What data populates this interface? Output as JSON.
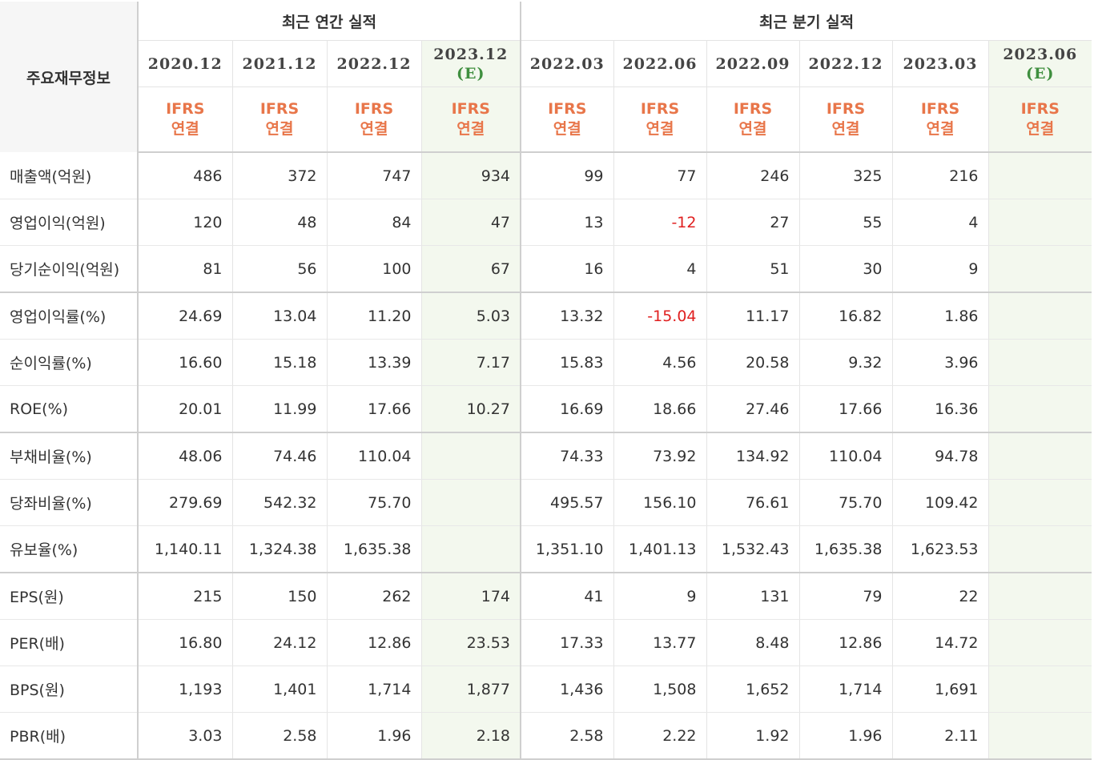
{
  "header": {
    "corner_label": "주요재무정보",
    "annual_group": "최근 연간 실적",
    "quarterly_group": "최근 분기 실적",
    "basis_line1": "IFRS",
    "basis_line2": "연결",
    "est_mark": "(E)",
    "annual_periods": [
      "2020.12",
      "2021.12",
      "2022.12",
      "2023.12"
    ],
    "quarterly_periods": [
      "2022.03",
      "2022.06",
      "2022.09",
      "2022.12",
      "2023.03",
      "2023.06"
    ]
  },
  "rows": [
    {
      "label": "매출액(억원)",
      "annual": [
        "486",
        "372",
        "747",
        "934"
      ],
      "quarterly": [
        "99",
        "77",
        "246",
        "325",
        "216",
        ""
      ]
    },
    {
      "label": "영업이익(억원)",
      "annual": [
        "120",
        "48",
        "84",
        "47"
      ],
      "quarterly": [
        "13",
        "-12",
        "27",
        "55",
        "4",
        ""
      ]
    },
    {
      "label": "당기순이익(억원)",
      "annual": [
        "81",
        "56",
        "100",
        "67"
      ],
      "quarterly": [
        "16",
        "4",
        "51",
        "30",
        "9",
        ""
      ]
    },
    {
      "label": "영업이익률(%)",
      "annual": [
        "24.69",
        "13.04",
        "11.20",
        "5.03"
      ],
      "quarterly": [
        "13.32",
        "-15.04",
        "11.17",
        "16.82",
        "1.86",
        ""
      ]
    },
    {
      "label": "순이익률(%)",
      "annual": [
        "16.60",
        "15.18",
        "13.39",
        "7.17"
      ],
      "quarterly": [
        "15.83",
        "4.56",
        "20.58",
        "9.32",
        "3.96",
        ""
      ]
    },
    {
      "label": "ROE(%)",
      "annual": [
        "20.01",
        "11.99",
        "17.66",
        "10.27"
      ],
      "quarterly": [
        "16.69",
        "18.66",
        "27.46",
        "17.66",
        "16.36",
        ""
      ]
    },
    {
      "label": "부채비율(%)",
      "annual": [
        "48.06",
        "74.46",
        "110.04",
        ""
      ],
      "quarterly": [
        "74.33",
        "73.92",
        "134.92",
        "110.04",
        "94.78",
        ""
      ]
    },
    {
      "label": "당좌비율(%)",
      "annual": [
        "279.69",
        "542.32",
        "75.70",
        ""
      ],
      "quarterly": [
        "495.57",
        "156.10",
        "76.61",
        "75.70",
        "109.42",
        ""
      ]
    },
    {
      "label": "유보율(%)",
      "annual": [
        "1,140.11",
        "1,324.38",
        "1,635.38",
        ""
      ],
      "quarterly": [
        "1,351.10",
        "1,401.13",
        "1,532.43",
        "1,635.38",
        "1,623.53",
        ""
      ]
    },
    {
      "label": "EPS(원)",
      "annual": [
        "215",
        "150",
        "262",
        "174"
      ],
      "quarterly": [
        "41",
        "9",
        "131",
        "79",
        "22",
        ""
      ]
    },
    {
      "label": "PER(배)",
      "annual": [
        "16.80",
        "24.12",
        "12.86",
        "23.53"
      ],
      "quarterly": [
        "17.33",
        "13.77",
        "8.48",
        "12.86",
        "14.72",
        ""
      ]
    },
    {
      "label": "BPS(원)",
      "annual": [
        "1,193",
        "1,401",
        "1,714",
        "1,877"
      ],
      "quarterly": [
        "1,436",
        "1,508",
        "1,652",
        "1,714",
        "1,691",
        ""
      ]
    },
    {
      "label": "PBR(배)",
      "annual": [
        "3.03",
        "2.58",
        "1.96",
        "2.18"
      ],
      "quarterly": [
        "2.58",
        "2.22",
        "1.92",
        "1.96",
        "2.11",
        ""
      ]
    }
  ],
  "colors": {
    "basis_orange": "#e8764a",
    "estimate_green": "#3f8f3f",
    "negative_red": "#e02020",
    "estimate_bg": "#f3f8ee"
  }
}
